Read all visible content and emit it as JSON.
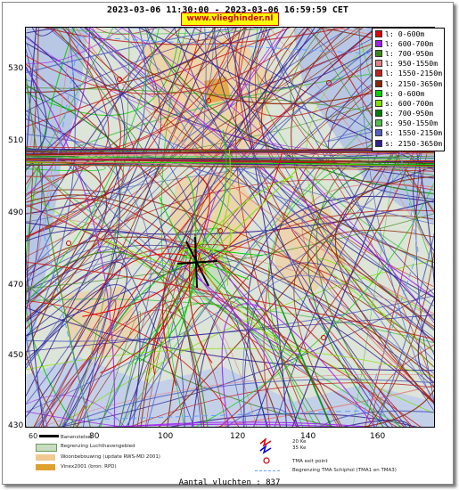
{
  "header": {
    "date_range": "2023-03-06 11:30:00 - 2023-03-06 16:59:59 CET",
    "site": "www.vlieghinder.nl"
  },
  "axes": {
    "x_ticks": [
      "80",
      "100",
      "120",
      "140",
      "160"
    ],
    "y_ticks": [
      "530",
      "510",
      "490",
      "470",
      "450",
      "430"
    ]
  },
  "legend": {
    "items": [
      {
        "label": "l: 0-600m",
        "color": "#e00000"
      },
      {
        "label": "l: 600-700m",
        "color": "#a020f0"
      },
      {
        "label": "l: 700-950m",
        "color": "#3a8a1a"
      },
      {
        "label": "l: 950-1550m",
        "color": "#e08080"
      },
      {
        "label": "l: 1550-2150m",
        "color": "#c02020"
      },
      {
        "label": "l: 2150-3650m",
        "color": "#8b2500"
      },
      {
        "label": "s: 0-600m",
        "color": "#00d000"
      },
      {
        "label": "s: 600-700m",
        "color": "#80e000"
      },
      {
        "label": "s: 700-950m",
        "color": "#008000"
      },
      {
        "label": "s: 950-1550m",
        "color": "#50c050"
      },
      {
        "label": "s: 1550-2150m",
        "color": "#5060c0"
      },
      {
        "label": "s: 2150-3650m",
        "color": "#302090"
      }
    ]
  },
  "bottom_legend": {
    "scale_start": "60",
    "items": [
      {
        "label": "Banenstelsel",
        "color": "#000000"
      },
      {
        "label": "Begrenzing Luchthavengebied",
        "color": "#c8dcc0"
      },
      {
        "label": "Woonbebouwing (update RWS-MD 2001)",
        "color": "#f0c890"
      },
      {
        "label": "Vinex2001 (bron: RPD)",
        "color": "#e0a030"
      }
    ],
    "right_items": [
      {
        "label": "20 Ke"
      },
      {
        "label": "35 Ke"
      },
      {
        "label": "TMA exit point"
      },
      {
        "label": "Begrenzing TMA Schiphol  (TMA1 en TMA3)"
      }
    ]
  },
  "footer": {
    "count_text": "Aantal vluchten : 837"
  }
}
